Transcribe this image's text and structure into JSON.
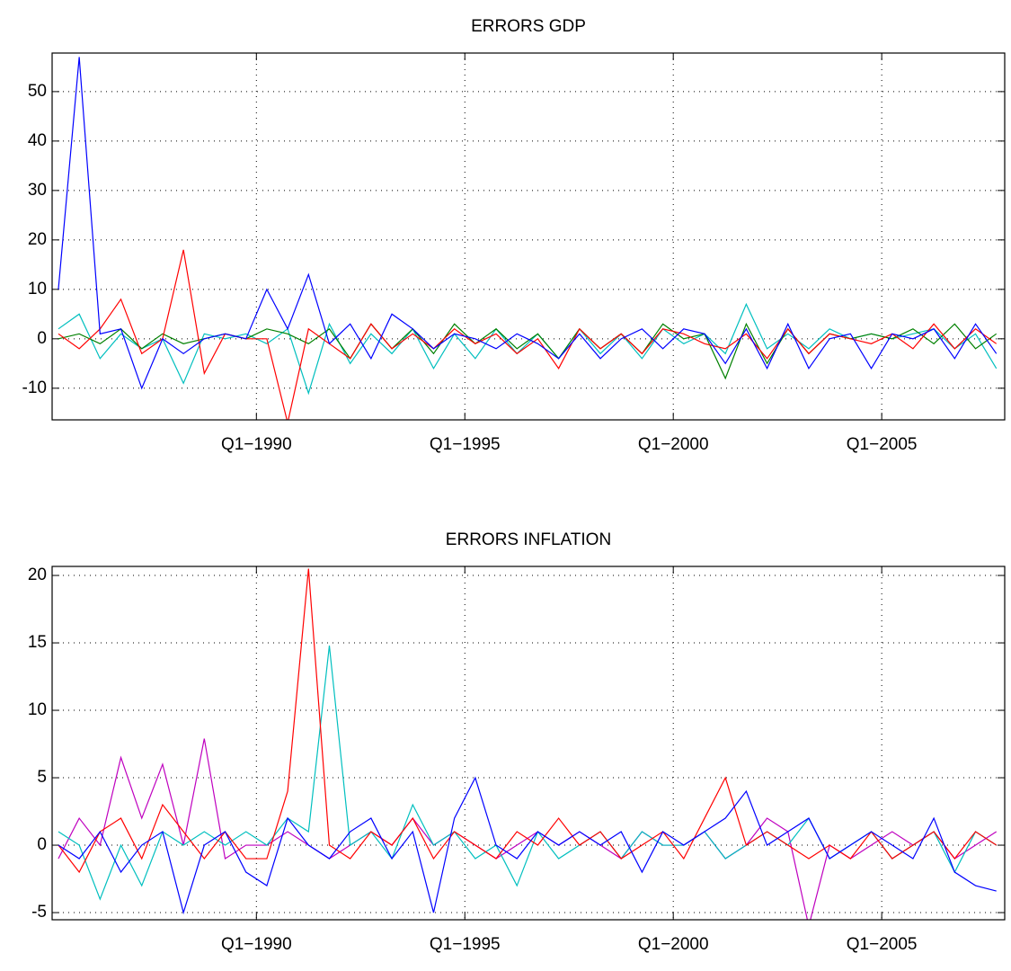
{
  "chart_data": [
    {
      "type": "line",
      "title": "ERRORS GDP",
      "x": [
        1985.25,
        1985.75,
        1986.25,
        1986.75,
        1987.25,
        1987.75,
        1988.25,
        1988.75,
        1989.25,
        1989.75,
        1990.25,
        1990.75,
        1991.25,
        1991.75,
        1992.25,
        1992.75,
        1993.25,
        1993.75,
        1994.25,
        1994.75,
        1995.25,
        1995.75,
        1996.25,
        1996.75,
        1997.25,
        1997.75,
        1998.25,
        1998.75,
        1999.25,
        1999.75,
        2000.25,
        2000.75,
        2001.25,
        2001.75,
        2002.25,
        2002.75,
        2003.25,
        2003.75,
        2004.25,
        2004.75,
        2005.25,
        2005.75,
        2006.25,
        2006.75,
        2007.25,
        2007.75
      ],
      "xlim": [
        1985.1,
        2007.95
      ],
      "xticks": [
        {
          "value": 1990,
          "label": "Q1−1990"
        },
        {
          "value": 1995,
          "label": "Q1−1995"
        },
        {
          "value": 2000,
          "label": "Q1−2000"
        },
        {
          "value": 2005,
          "label": "Q1−2005"
        }
      ],
      "ylim": [
        -16.4,
        57.8
      ],
      "yticks": [
        -10,
        0,
        10,
        20,
        30,
        40,
        50
      ],
      "grid": true,
      "series": [
        {
          "color": "#00bfbf",
          "values": [
            2,
            5,
            -4,
            1,
            -2,
            0,
            -9,
            1,
            0,
            1,
            -1,
            2,
            -11,
            3,
            -5,
            1,
            -3,
            2,
            -6,
            1,
            -4,
            2,
            -3,
            1,
            -4,
            2,
            -3,
            1,
            -4,
            2,
            -1,
            1,
            -3,
            7,
            -2,
            1,
            -2,
            2,
            0,
            1,
            0,
            1,
            2,
            -2,
            1,
            -6
          ]
        },
        {
          "color": "#008000",
          "values": [
            0,
            1,
            -1,
            2,
            -2,
            1,
            -1,
            0,
            1,
            0,
            2,
            1,
            -1,
            2,
            -4,
            3,
            -2,
            2,
            -3,
            3,
            -1,
            2,
            -2,
            1,
            -4,
            2,
            -2,
            1,
            -3,
            3,
            0,
            1,
            -8,
            3,
            -5,
            2,
            -3,
            1,
            0,
            1,
            0,
            2,
            -1,
            3,
            -2,
            1
          ]
        },
        {
          "color": "#ff0000",
          "values": [
            1,
            -2,
            2,
            8,
            -3,
            0,
            18,
            -7,
            1,
            0,
            0,
            -17,
            2,
            -1,
            -4,
            3,
            -2,
            1,
            -2,
            2,
            -1,
            1,
            -3,
            0,
            -6,
            2,
            -2,
            1,
            -3,
            2,
            1,
            -1,
            -2,
            1,
            -4,
            2,
            -3,
            1,
            0,
            -1,
            1,
            -2,
            3,
            -2,
            2,
            -1
          ]
        },
        {
          "color": "#0000ff",
          "values": [
            10,
            57,
            1,
            2,
            -10,
            0,
            -3,
            0,
            1,
            0,
            10,
            2,
            13,
            -1,
            3,
            -4,
            5,
            2,
            -2,
            1,
            0,
            -2,
            1,
            -1,
            -4,
            1,
            -4,
            0,
            2,
            -2,
            2,
            1,
            -5,
            2,
            -6,
            3,
            -6,
            0,
            1,
            -6,
            1,
            0,
            2,
            -4,
            3,
            -3
          ]
        }
      ]
    },
    {
      "type": "line",
      "title": "ERRORS INFLATION",
      "x": [
        1985.25,
        1985.75,
        1986.25,
        1986.75,
        1987.25,
        1987.75,
        1988.25,
        1988.75,
        1989.25,
        1989.75,
        1990.25,
        1990.75,
        1991.25,
        1991.75,
        1992.25,
        1992.75,
        1993.25,
        1993.75,
        1994.25,
        1994.75,
        1995.25,
        1995.75,
        1996.25,
        1996.75,
        1997.25,
        1997.75,
        1998.25,
        1998.75,
        1999.25,
        1999.75,
        2000.25,
        2000.75,
        2001.25,
        2001.75,
        2002.25,
        2002.75,
        2003.25,
        2003.75,
        2004.25,
        2004.75,
        2005.25,
        2005.75,
        2006.25,
        2006.75,
        2007.25,
        2007.75
      ],
      "xlim": [
        1985.1,
        2007.95
      ],
      "xticks": [
        {
          "value": 1990,
          "label": "Q1−1990"
        },
        {
          "value": 1995,
          "label": "Q1−1995"
        },
        {
          "value": 2000,
          "label": "Q1−2000"
        },
        {
          "value": 2005,
          "label": "Q1−2005"
        }
      ],
      "ylim": [
        -5.53,
        20.67
      ],
      "yticks": [
        -5,
        0,
        5,
        10,
        15,
        20
      ],
      "grid": true,
      "series": [
        {
          "color": "#bf00bf",
          "values": [
            -1,
            2,
            0,
            6.5,
            2,
            6,
            0,
            7.9,
            -1,
            0,
            0,
            1,
            0,
            -1,
            0,
            1,
            0,
            2,
            0,
            1,
            0,
            -1,
            0,
            1,
            0,
            1,
            0,
            -1,
            1,
            0,
            0,
            1,
            -1,
            0,
            2,
            1,
            -6,
            0,
            -1,
            0,
            1,
            0,
            1,
            -1,
            0,
            1
          ]
        },
        {
          "color": "#00bfbf",
          "values": [
            1,
            0,
            -4,
            0,
            -3,
            1,
            0,
            1,
            0,
            1,
            0,
            2,
            1,
            14.8,
            0,
            1,
            -1,
            3,
            0,
            1,
            -1,
            0,
            -3,
            1,
            -1,
            0,
            1,
            -1,
            1,
            0,
            0,
            1,
            -1,
            0,
            1,
            0,
            2,
            -1,
            0,
            1,
            -1,
            0,
            1,
            -2,
            1,
            0
          ]
        },
        {
          "color": "#ff0000",
          "values": [
            0,
            -2,
            1,
            2,
            -1,
            3,
            1,
            -1,
            1,
            -1,
            -1,
            4,
            20.5,
            0,
            -1,
            1,
            0,
            2,
            -1,
            1,
            0,
            -1,
            1,
            0,
            2,
            0,
            1,
            -1,
            0,
            1,
            -1,
            2,
            5,
            0,
            1,
            0,
            -1,
            0,
            -1,
            1,
            -1,
            0,
            1,
            -1,
            1,
            0
          ]
        },
        {
          "color": "#0000ff",
          "values": [
            0,
            -1,
            1,
            -2,
            0,
            1,
            -5,
            0,
            1,
            -2,
            -3,
            2,
            0,
            -1,
            1,
            2,
            -1,
            1,
            -5,
            2,
            5,
            0,
            -1,
            1,
            0,
            1,
            0,
            1,
            -2,
            1,
            0,
            1,
            2,
            4,
            0,
            1,
            2,
            -1,
            0,
            1,
            0,
            -1,
            2,
            -2,
            -3,
            -3.4
          ]
        }
      ]
    }
  ]
}
